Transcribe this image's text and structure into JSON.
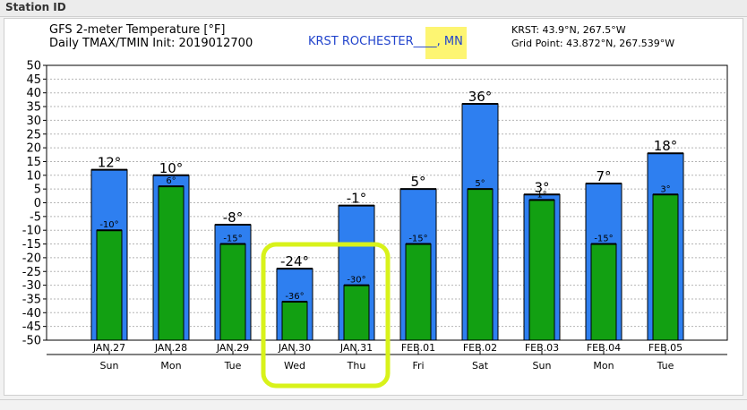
{
  "header": {
    "title": "Station ID"
  },
  "chart_data": {
    "type": "bar",
    "title": "GFS 2-meter Temperature [°F]",
    "subtitle": "Daily TMAX/TMIN Init: 2019012700",
    "station": {
      "name": "KRST ROCHESTER____",
      "state": ", MN"
    },
    "coords": {
      "station": "KRST: 43.9°N, 267.5°W",
      "grid_point": "Grid Point: 43.872°N, 267.539°W"
    },
    "ylim": [
      -50,
      50
    ],
    "yticks": [
      50,
      45,
      40,
      35,
      30,
      25,
      20,
      15,
      10,
      5,
      0,
      -5,
      -10,
      -15,
      -20,
      -25,
      -30,
      -35,
      -40,
      -45,
      -50
    ],
    "grid": true,
    "categories": [
      "JAN.27",
      "JAN.28",
      "JAN.29",
      "JAN.30",
      "JAN.31",
      "FEB.01",
      "FEB.02",
      "FEB.03",
      "FEB.04",
      "FEB.05"
    ],
    "days": [
      "Sun",
      "Mon",
      "Tue",
      "Wed",
      "Thu",
      "Fri",
      "Sat",
      "Sun",
      "Mon",
      "Tue"
    ],
    "series": [
      {
        "key": "tmax",
        "color": "#2e7ff0",
        "values": [
          12,
          10,
          -8,
          -24,
          -1,
          5,
          36,
          3,
          7,
          18
        ],
        "labels": [
          "12°",
          "10°",
          "-8°",
          "-24°",
          "-1°",
          "5°",
          "36°",
          "3°",
          "7°",
          "18°"
        ]
      },
      {
        "key": "tmin",
        "color": "#12a012",
        "values": [
          -10,
          6,
          -15,
          -36,
          -30,
          -15,
          5,
          1,
          -15,
          3
        ],
        "labels": [
          "-10°",
          "6°",
          "-15°",
          "-36°",
          "-30°",
          "-15°",
          "5°",
          "1°",
          "-15°",
          "3°"
        ]
      }
    ],
    "highlight": {
      "categories": [
        "JAN.30",
        "JAN.31"
      ],
      "color": "#d8f21a"
    }
  }
}
